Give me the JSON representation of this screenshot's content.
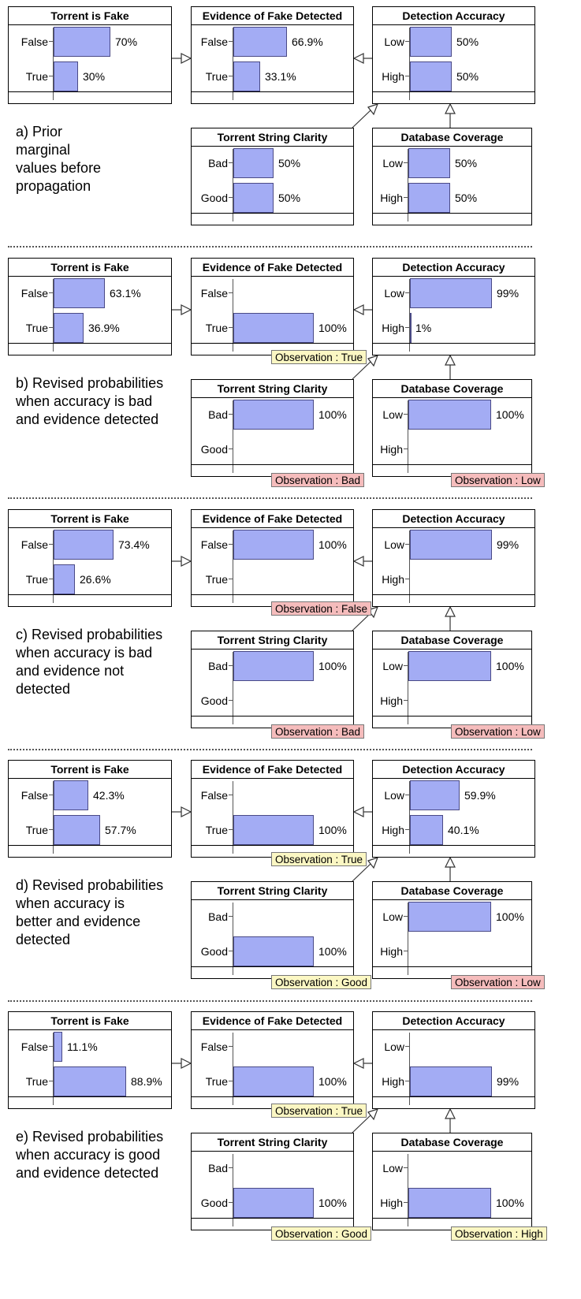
{
  "nodes": {
    "fake": "Torrent is Fake",
    "evidence": "Evidence of Fake Detected",
    "accuracy": "Detection Accuracy",
    "clarity": "Torrent String Clarity",
    "coverage": "Database Coverage"
  },
  "states": {
    "fake": [
      "False",
      "True"
    ],
    "evidence": [
      "False",
      "True"
    ],
    "accuracy": [
      "Low",
      "High"
    ],
    "clarity": [
      "Bad",
      "Good"
    ],
    "coverage": [
      "Low",
      "High"
    ]
  },
  "colors": {
    "bar": "#a3acf4",
    "obs_true": "#fbf7c3",
    "obs_false": "#f5bcbc"
  },
  "panels": [
    {
      "caption": [
        "a) Prior",
        "marginal",
        "values before",
        "propagation"
      ],
      "fake": [
        {
          "pct": 0.7,
          "label": "70%"
        },
        {
          "pct": 0.3,
          "label": "30%"
        }
      ],
      "evidence": [
        {
          "pct": 0.669,
          "label": "66.9%"
        },
        {
          "pct": 0.331,
          "label": "33.1%"
        }
      ],
      "accuracy": [
        {
          "pct": 0.5,
          "label": "50%"
        },
        {
          "pct": 0.5,
          "label": "50%"
        }
      ],
      "clarity": [
        {
          "pct": 0.5,
          "label": "50%"
        },
        {
          "pct": 0.5,
          "label": "50%"
        }
      ],
      "coverage": [
        {
          "pct": 0.5,
          "label": "50%"
        },
        {
          "pct": 0.5,
          "label": "50%"
        }
      ],
      "obs": {}
    },
    {
      "caption": [
        "b) Revised probabilities",
        "when accuracy is bad",
        "and evidence detected"
      ],
      "fake": [
        {
          "pct": 0.631,
          "label": "63.1%"
        },
        {
          "pct": 0.369,
          "label": "36.9%"
        }
      ],
      "evidence": [
        {
          "pct": 0,
          "label": ""
        },
        {
          "pct": 1.0,
          "label": "100%"
        }
      ],
      "accuracy": [
        {
          "pct": 0.99,
          "label": "99%"
        },
        {
          "pct": 0.01,
          "label": "1%"
        }
      ],
      "clarity": [
        {
          "pct": 1.0,
          "label": "100%"
        },
        {
          "pct": 0,
          "label": ""
        }
      ],
      "coverage": [
        {
          "pct": 1.0,
          "label": "100%"
        },
        {
          "pct": 0,
          "label": ""
        }
      ],
      "obs": {
        "evidence": {
          "text": "Observation : True",
          "tone": "yellow"
        },
        "clarity": {
          "text": "Observation : Bad",
          "tone": "pink"
        },
        "coverage": {
          "text": "Observation : Low",
          "tone": "pink"
        }
      }
    },
    {
      "caption": [
        "c) Revised probabilities",
        "when accuracy is bad",
        "and evidence not",
        "detected"
      ],
      "fake": [
        {
          "pct": 0.734,
          "label": "73.4%"
        },
        {
          "pct": 0.266,
          "label": "26.6%"
        }
      ],
      "evidence": [
        {
          "pct": 1.0,
          "label": "100%"
        },
        {
          "pct": 0,
          "label": ""
        }
      ],
      "accuracy": [
        {
          "pct": 0.99,
          "label": "99%"
        },
        {
          "pct": 0,
          "label": ""
        }
      ],
      "clarity": [
        {
          "pct": 1.0,
          "label": "100%"
        },
        {
          "pct": 0,
          "label": ""
        }
      ],
      "coverage": [
        {
          "pct": 1.0,
          "label": "100%"
        },
        {
          "pct": 0,
          "label": ""
        }
      ],
      "obs": {
        "evidence": {
          "text": "Observation : False",
          "tone": "pink"
        },
        "clarity": {
          "text": "Observation : Bad",
          "tone": "pink"
        },
        "coverage": {
          "text": "Observation : Low",
          "tone": "pink"
        }
      }
    },
    {
      "caption": [
        "d) Revised probabilities",
        "when accuracy is",
        "better and evidence",
        "detected"
      ],
      "fake": [
        {
          "pct": 0.423,
          "label": "42.3%"
        },
        {
          "pct": 0.577,
          "label": "57.7%"
        }
      ],
      "evidence": [
        {
          "pct": 0,
          "label": ""
        },
        {
          "pct": 1.0,
          "label": "100%"
        }
      ],
      "accuracy": [
        {
          "pct": 0.599,
          "label": "59.9%"
        },
        {
          "pct": 0.401,
          "label": "40.1%"
        }
      ],
      "clarity": [
        {
          "pct": 0,
          "label": ""
        },
        {
          "pct": 1.0,
          "label": "100%"
        }
      ],
      "coverage": [
        {
          "pct": 1.0,
          "label": "100%"
        },
        {
          "pct": 0,
          "label": ""
        }
      ],
      "obs": {
        "evidence": {
          "text": "Observation : True",
          "tone": "yellow"
        },
        "clarity": {
          "text": "Observation : Good",
          "tone": "yellow"
        },
        "coverage": {
          "text": "Observation : Low",
          "tone": "pink"
        }
      }
    },
    {
      "caption": [
        "e) Revised probabilities",
        "when accuracy is good",
        "and evidence detected"
      ],
      "fake": [
        {
          "pct": 0.111,
          "label": "11.1%"
        },
        {
          "pct": 0.889,
          "label": "88.9%"
        }
      ],
      "evidence": [
        {
          "pct": 0,
          "label": ""
        },
        {
          "pct": 1.0,
          "label": "100%"
        }
      ],
      "accuracy": [
        {
          "pct": 0,
          "label": ""
        },
        {
          "pct": 0.99,
          "label": "99%"
        }
      ],
      "clarity": [
        {
          "pct": 0,
          "label": ""
        },
        {
          "pct": 1.0,
          "label": "100%"
        }
      ],
      "coverage": [
        {
          "pct": 0,
          "label": ""
        },
        {
          "pct": 1.0,
          "label": "100%"
        }
      ],
      "obs": {
        "evidence": {
          "text": "Observation : True",
          "tone": "yellow"
        },
        "clarity": {
          "text": "Observation : Good",
          "tone": "yellow"
        },
        "coverage": {
          "text": "Observation : High",
          "tone": "yellow"
        }
      }
    }
  ]
}
